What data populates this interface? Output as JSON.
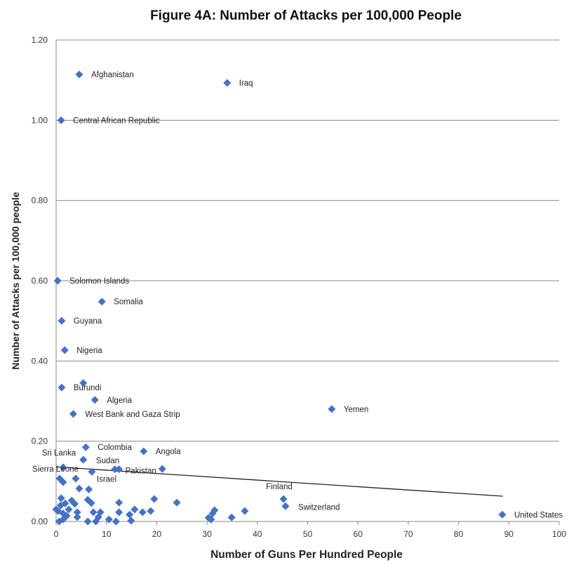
{
  "chart_data": {
    "type": "scatter",
    "title": "Figure 4A: Number of Attacks per 100,000 People",
    "xlabel": "Number of Guns Per Hundred People",
    "ylabel": "Number of Attacks per 100,000 people",
    "xlim": [
      0,
      100
    ],
    "ylim": [
      0,
      1.2
    ],
    "x_ticks": [
      "0",
      "10",
      "20",
      "30",
      "40",
      "50",
      "60",
      "70",
      "80",
      "90",
      "100"
    ],
    "y_ticks": [
      "0.00",
      "0.20",
      "0.40",
      "0.60",
      "0.80",
      "1.00",
      "1.20"
    ],
    "grid": "horizontal",
    "marker_color": "#4472C4",
    "trendline": {
      "x": [
        0,
        88.8
      ],
      "y": [
        0.136,
        0.063
      ]
    },
    "labeled_points": [
      {
        "label": "Afghanistan",
        "x": 4.6,
        "y": 1.114
      },
      {
        "label": "Iraq",
        "x": 34.0,
        "y": 1.093
      },
      {
        "label": "Central African Republic",
        "x": 1.0,
        "y": 1.0
      },
      {
        "label": "Solomon Islands",
        "x": 0.3,
        "y": 0.6
      },
      {
        "label": "Somalia",
        "x": 9.1,
        "y": 0.548
      },
      {
        "label": "Guyana",
        "x": 1.1,
        "y": 0.5
      },
      {
        "label": "Nigeria",
        "x": 1.7,
        "y": 0.427
      },
      {
        "label": "Burundi",
        "x": 1.1,
        "y": 0.334
      },
      {
        "label": "Algeria",
        "x": 7.7,
        "y": 0.303
      },
      {
        "label": "West Bank and Gaza Strip",
        "x": 3.4,
        "y": 0.268
      },
      {
        "label": "Yemen",
        "x": 54.8,
        "y": 0.28
      },
      {
        "label": "Colombia",
        "x": 5.9,
        "y": 0.185
      },
      {
        "label": "Angola",
        "x": 17.4,
        "y": 0.175
      },
      {
        "label": "Sri Lanka",
        "x": 5.4,
        "y": 0.154
      },
      {
        "label": "Sierra Leone",
        "x": 1.4,
        "y": 0.135
      },
      {
        "label": "Sudan",
        "x": 7.1,
        "y": 0.124
      },
      {
        "label": "Israel",
        "x": 11.7,
        "y": 0.13
      },
      {
        "label": "Pakistan",
        "x": 12.5,
        "y": 0.13
      },
      {
        "label": "Finland",
        "x": 45.2,
        "y": 0.056
      },
      {
        "label": "Switzerland",
        "x": 45.6,
        "y": 0.038
      },
      {
        "label": "United States",
        "x": 88.7,
        "y": 0.017
      }
    ],
    "unlabeled_points": [
      [
        5.4,
        0.345
      ],
      [
        21.1,
        0.131
      ],
      [
        0.7,
        0.107
      ],
      [
        1.4,
        0.098
      ],
      [
        3.9,
        0.107
      ],
      [
        4.6,
        0.082
      ],
      [
        6.5,
        0.08
      ],
      [
        1.0,
        0.058
      ],
      [
        3.1,
        0.052
      ],
      [
        3.7,
        0.044
      ],
      [
        6.3,
        0.054
      ],
      [
        7.0,
        0.046
      ],
      [
        12.5,
        0.047
      ],
      [
        19.5,
        0.056
      ],
      [
        24.0,
        0.047
      ],
      [
        0.4,
        0.026
      ],
      [
        1.4,
        0.02
      ],
      [
        2.1,
        0.014
      ],
      [
        4.2,
        0.011
      ],
      [
        4.2,
        0.023
      ],
      [
        7.4,
        0.023
      ],
      [
        8.8,
        0.023
      ],
      [
        8.4,
        0.011
      ],
      [
        6.3,
        0.0
      ],
      [
        7.9,
        0.0
      ],
      [
        10.5,
        0.005
      ],
      [
        11.9,
        0.0
      ],
      [
        12.5,
        0.023
      ],
      [
        14.6,
        0.017
      ],
      [
        15.6,
        0.03
      ],
      [
        14.9,
        0.002
      ],
      [
        17.2,
        0.023
      ],
      [
        18.8,
        0.026
      ],
      [
        30.3,
        0.009
      ],
      [
        31.1,
        0.02
      ],
      [
        30.8,
        0.005
      ],
      [
        31.5,
        0.028
      ],
      [
        34.9,
        0.01
      ],
      [
        37.5,
        0.026
      ],
      [
        0.6,
        0.0
      ],
      [
        1.4,
        0.005
      ],
      [
        0.0,
        0.03
      ],
      [
        2.5,
        0.03
      ],
      [
        1.8,
        0.045
      ],
      [
        0.9,
        0.04
      ]
    ]
  }
}
